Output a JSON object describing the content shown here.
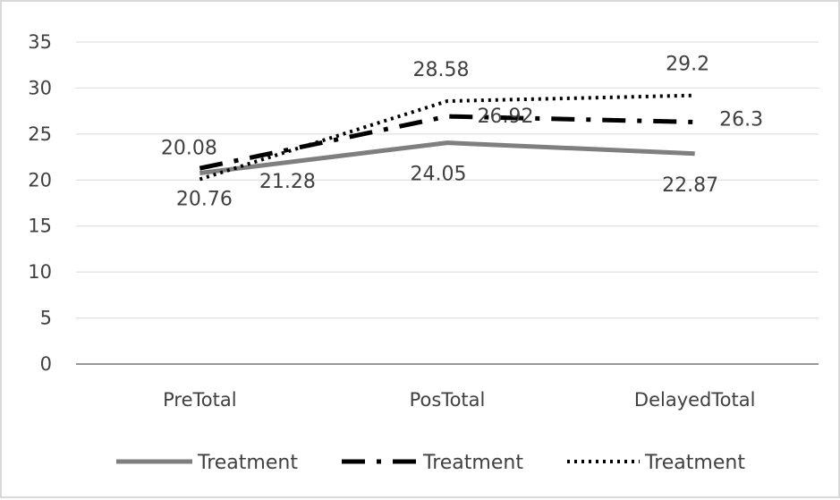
{
  "chart_data": {
    "type": "line",
    "title": "",
    "xlabel": "",
    "ylabel": "",
    "categories": [
      "PreTotal",
      "PosTotal",
      "DelayedTotal"
    ],
    "ylim": [
      0,
      35
    ],
    "yticks": [
      0,
      5,
      10,
      15,
      20,
      25,
      30,
      35
    ],
    "grid": true,
    "legend_position": "bottom",
    "series": [
      {
        "name": "Treatment",
        "values": [
          20.76,
          24.05,
          22.87
        ],
        "labels": [
          "20.76",
          "24.05",
          "22.87"
        ],
        "style": "solid",
        "color": "#7f7f7f"
      },
      {
        "name": "Treatment",
        "values": [
          21.28,
          26.92,
          26.3
        ],
        "labels": [
          "21.28",
          "26.92",
          "26.3"
        ],
        "style": "dash-dot",
        "color": "#000000"
      },
      {
        "name": "Treatment",
        "values": [
          20.08,
          28.58,
          29.2
        ],
        "labels": [
          "20.08",
          "28.58",
          "29.2"
        ],
        "style": "dotted",
        "color": "#000000"
      }
    ]
  }
}
